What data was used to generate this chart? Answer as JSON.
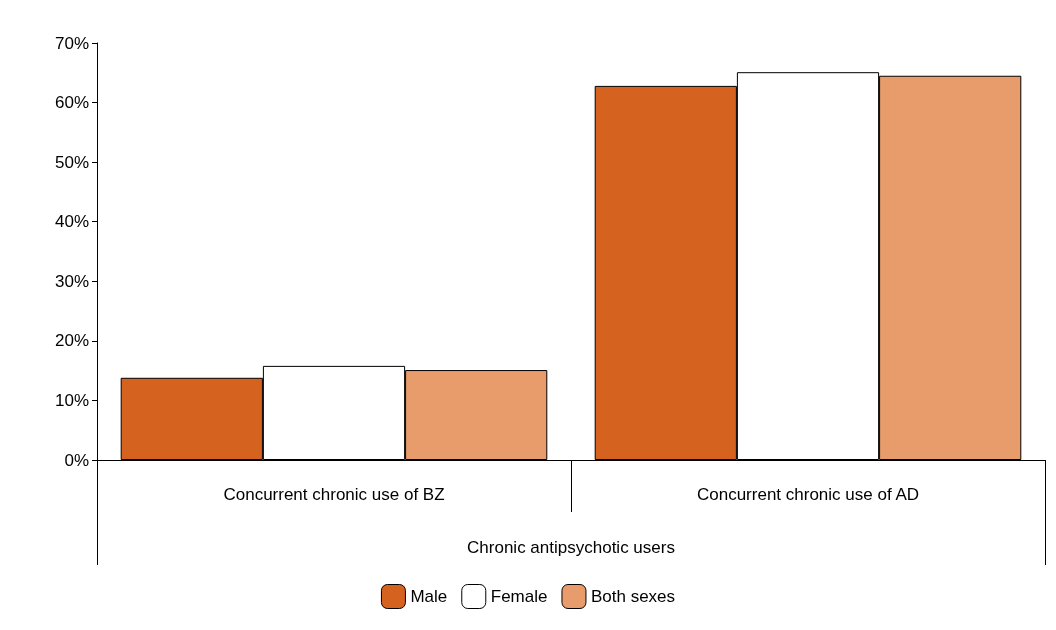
{
  "chart_data": {
    "type": "bar",
    "categories": [
      "Concurrent chronic use of BZ",
      "Concurrent chronic use of AD"
    ],
    "xlabel": "Chronic antipsychotic users",
    "series": [
      {
        "name": "Male",
        "color": "#d5631f",
        "values": [
          13.8,
          62.8
        ]
      },
      {
        "name": "Female",
        "color": "#ffffff",
        "values": [
          15.8,
          65.1
        ]
      },
      {
        "name": "Both sexes",
        "color": "#e89c6c",
        "values": [
          15.1,
          64.5
        ]
      }
    ],
    "ylim": [
      0,
      70
    ],
    "yticks": [
      {
        "value": 0,
        "label": "0%"
      },
      {
        "value": 10,
        "label": "10%"
      },
      {
        "value": 20,
        "label": "20%"
      },
      {
        "value": 30,
        "label": "30%"
      },
      {
        "value": 40,
        "label": "40%"
      },
      {
        "value": 50,
        "label": "50%"
      },
      {
        "value": 60,
        "label": "60%"
      },
      {
        "value": 70,
        "label": "70%"
      }
    ],
    "grid": false,
    "legend": "bottom"
  }
}
